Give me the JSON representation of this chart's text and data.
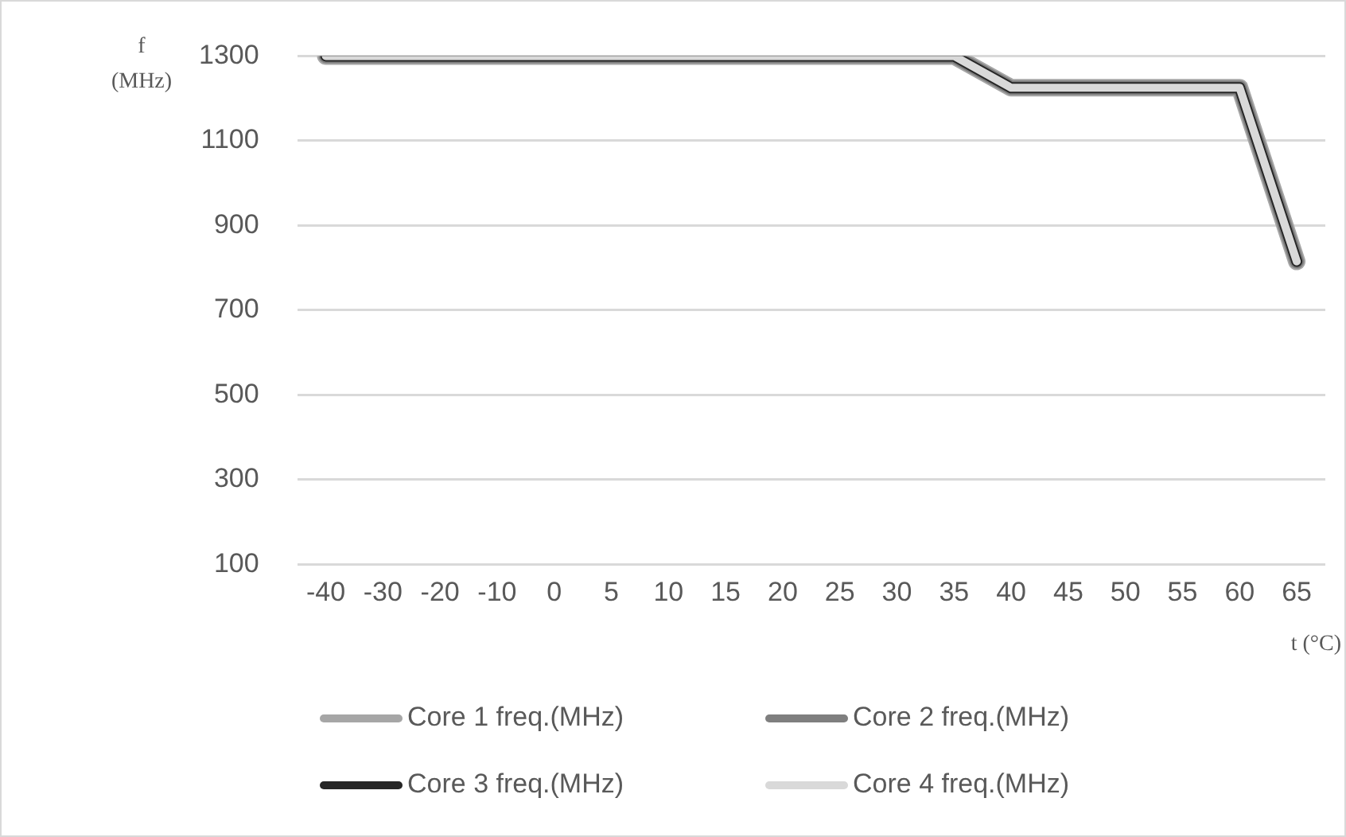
{
  "chart_data": {
    "type": "line",
    "xlabel": "t (°C)",
    "ylabel": "f (MHz)",
    "categories": [
      "-40",
      "-30",
      "-20",
      "-10",
      "0",
      "5",
      "10",
      "15",
      "20",
      "25",
      "30",
      "35",
      "40",
      "45",
      "50",
      "55",
      "60",
      "65"
    ],
    "series": [
      {
        "name": "Core 1 freq.(MHz)",
        "color": "#a6a6a6",
        "values": [
          1300,
          1300,
          1300,
          1300,
          1300,
          1300,
          1300,
          1300,
          1300,
          1300,
          1300,
          1300,
          1225,
          1225,
          1225,
          1225,
          1225,
          815
        ]
      },
      {
        "name": "Core 2 freq.(MHz)",
        "color": "#7f7f7f",
        "values": [
          1300,
          1300,
          1300,
          1300,
          1300,
          1300,
          1300,
          1300,
          1300,
          1300,
          1300,
          1300,
          1225,
          1225,
          1225,
          1225,
          1225,
          815
        ]
      },
      {
        "name": "Core 3 freq.(MHz)",
        "color": "#262626",
        "values": [
          1300,
          1300,
          1300,
          1300,
          1300,
          1300,
          1300,
          1300,
          1300,
          1300,
          1300,
          1300,
          1225,
          1225,
          1225,
          1225,
          1225,
          815
        ]
      },
      {
        "name": "Core 4 freq.(MHz)",
        "color": "#d9d9d9",
        "values": [
          1300,
          1300,
          1300,
          1300,
          1300,
          1300,
          1300,
          1300,
          1300,
          1300,
          1300,
          1300,
          1225,
          1225,
          1225,
          1225,
          1225,
          815
        ]
      }
    ],
    "ylim": [
      100,
      1300
    ],
    "yticks": [
      100,
      300,
      500,
      700,
      900,
      1100,
      1300
    ],
    "grid": "y",
    "legend": "bottom",
    "marker": "none",
    "line_style": "solid"
  }
}
